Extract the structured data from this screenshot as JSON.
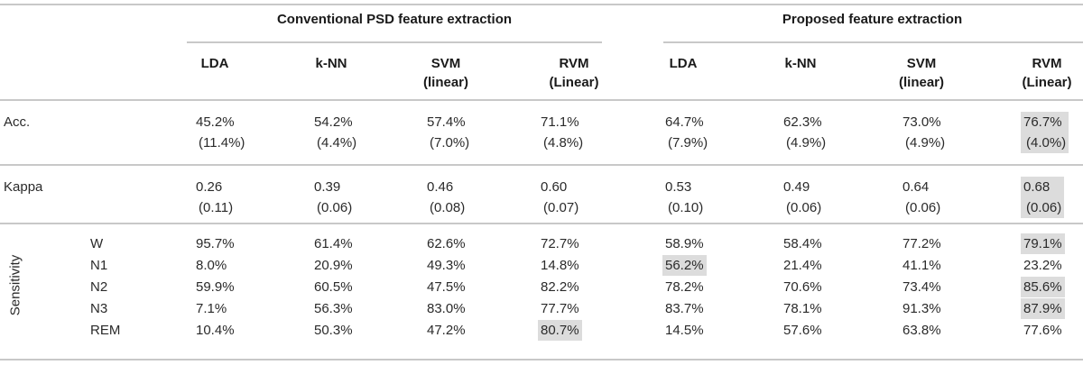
{
  "groups": [
    "Conventional PSD feature extraction",
    "Proposed feature extraction"
  ],
  "columns": [
    {
      "name": "LDA",
      "sub": ""
    },
    {
      "name": "k-NN",
      "sub": ""
    },
    {
      "name": "SVM",
      "sub": "(linear)"
    },
    {
      "name": "RVM",
      "sub": "(Linear)"
    },
    {
      "name": "LDA",
      "sub": ""
    },
    {
      "name": "k-NN",
      "sub": ""
    },
    {
      "name": "SVM",
      "sub": "(linear)"
    },
    {
      "name": "RVM",
      "sub": "(Linear)"
    }
  ],
  "highlight_color": "#dcdcdc",
  "acc": {
    "label": "Acc.",
    "values": [
      {
        "v": "45.2%",
        "sd": "(11.4%)"
      },
      {
        "v": "54.2%",
        "sd": "(4.4%)"
      },
      {
        "v": "57.4%",
        "sd": "(7.0%)"
      },
      {
        "v": "71.1%",
        "sd": "(4.8%)"
      },
      {
        "v": "64.7%",
        "sd": "(7.9%)"
      },
      {
        "v": "62.3%",
        "sd": "(4.9%)"
      },
      {
        "v": "73.0%",
        "sd": "(4.9%)"
      },
      {
        "v": "76.7%",
        "sd": "(4.0%)",
        "highlighted": true
      }
    ]
  },
  "kappa": {
    "label": "Kappa",
    "values": [
      {
        "v": "0.26",
        "sd": "(0.11)"
      },
      {
        "v": "0.39",
        "sd": "(0.06)"
      },
      {
        "v": "0.46",
        "sd": "(0.08)"
      },
      {
        "v": "0.60",
        "sd": "(0.07)"
      },
      {
        "v": "0.53",
        "sd": "(0.10)"
      },
      {
        "v": "0.49",
        "sd": "(0.06)"
      },
      {
        "v": "0.64",
        "sd": "(0.06)"
      },
      {
        "v": "0.68",
        "sd": "(0.06)",
        "highlighted": true
      }
    ]
  },
  "sensitivity": {
    "label": "Sensitivity",
    "rows": [
      {
        "stage": "W",
        "values": [
          "95.7%",
          "61.4%",
          "62.6%",
          "72.7%",
          "58.9%",
          "58.4%",
          "77.2%",
          "79.1%"
        ],
        "highlighted": [
          7
        ]
      },
      {
        "stage": "N1",
        "values": [
          "8.0%",
          "20.9%",
          "49.3%",
          "14.8%",
          "56.2%",
          "21.4%",
          "41.1%",
          "23.2%"
        ],
        "highlighted": [
          4
        ]
      },
      {
        "stage": "N2",
        "values": [
          "59.9%",
          "60.5%",
          "47.5%",
          "82.2%",
          "78.2%",
          "70.6%",
          "73.4%",
          "85.6%"
        ],
        "highlighted": [
          7
        ]
      },
      {
        "stage": "N3",
        "values": [
          "7.1%",
          "56.3%",
          "83.0%",
          "77.7%",
          "83.7%",
          "78.1%",
          "91.3%",
          "87.9%"
        ],
        "highlighted": [
          7
        ]
      },
      {
        "stage": "REM",
        "values": [
          "10.4%",
          "50.3%",
          "47.2%",
          "80.7%",
          "14.5%",
          "57.6%",
          "63.8%",
          "77.6%"
        ],
        "highlighted": [
          3
        ]
      }
    ]
  }
}
